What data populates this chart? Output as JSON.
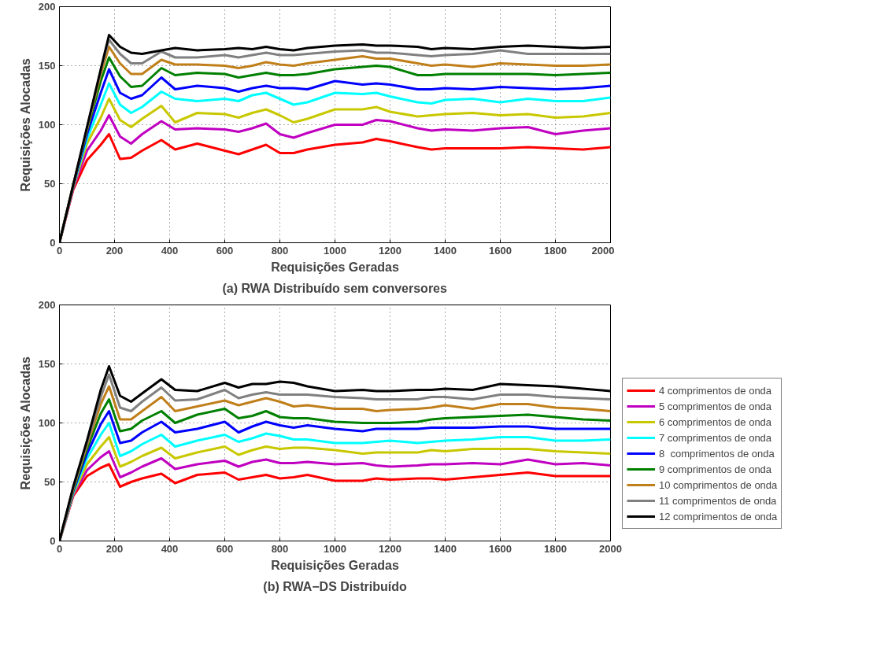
{
  "chart_data": [
    {
      "type": "line",
      "title": "(a) RWA Distribuído sem conversores",
      "xlabel": "Requisições Geradas",
      "ylabel": "Requisições Alocadas",
      "xlim": [
        0,
        2000
      ],
      "ylim": [
        0,
        200
      ],
      "xticks": [
        0,
        200,
        400,
        600,
        800,
        1000,
        1200,
        1400,
        1600,
        1800,
        2000
      ],
      "yticks": [
        0,
        50,
        100,
        150,
        200
      ],
      "grid": true,
      "line_style": "solid",
      "x": [
        0,
        50,
        100,
        150,
        180,
        220,
        260,
        300,
        370,
        420,
        500,
        600,
        650,
        700,
        750,
        800,
        850,
        900,
        1000,
        1100,
        1150,
        1200,
        1300,
        1350,
        1400,
        1500,
        1600,
        1700,
        1800,
        1900,
        2000
      ],
      "series": [
        {
          "color": "#ff0000",
          "values": [
            0,
            45,
            70,
            83,
            92,
            71,
            72,
            78,
            87,
            79,
            84,
            78,
            75,
            79,
            83,
            76,
            76,
            79,
            83,
            85,
            88,
            86,
            81,
            79,
            80,
            80,
            80,
            81,
            80,
            79,
            81
          ]
        },
        {
          "color": "#c000c0",
          "values": [
            0,
            46,
            78,
            95,
            108,
            90,
            84,
            92,
            103,
            96,
            97,
            96,
            94,
            97,
            101,
            92,
            89,
            93,
            100,
            100,
            104,
            103,
            97,
            95,
            96,
            95,
            97,
            98,
            92,
            95,
            97
          ]
        },
        {
          "color": "#c8c800",
          "values": [
            0,
            47,
            84,
            106,
            122,
            104,
            98,
            105,
            116,
            102,
            110,
            109,
            106,
            110,
            113,
            108,
            102,
            105,
            113,
            113,
            115,
            111,
            107,
            108,
            109,
            110,
            108,
            109,
            106,
            107,
            110
          ]
        },
        {
          "color": "#00ffff",
          "values": [
            0,
            48,
            88,
            117,
            135,
            117,
            110,
            115,
            128,
            122,
            120,
            122,
            120,
            125,
            127,
            122,
            117,
            119,
            127,
            126,
            127,
            124,
            119,
            118,
            121,
            122,
            119,
            122,
            120,
            120,
            123
          ]
        },
        {
          "color": "#0000ff",
          "values": [
            0,
            48,
            92,
            127,
            147,
            127,
            122,
            125,
            140,
            130,
            133,
            131,
            128,
            131,
            133,
            131,
            131,
            130,
            137,
            134,
            135,
            134,
            130,
            130,
            131,
            130,
            132,
            131,
            130,
            131,
            133
          ]
        },
        {
          "color": "#008000",
          "values": [
            0,
            49,
            95,
            137,
            157,
            141,
            132,
            133,
            148,
            142,
            144,
            143,
            140,
            142,
            144,
            142,
            142,
            143,
            147,
            149,
            150,
            149,
            142,
            142,
            143,
            143,
            143,
            143,
            142,
            143,
            144
          ]
        },
        {
          "color": "#c07f1a",
          "values": [
            0,
            49,
            96,
            143,
            166,
            152,
            143,
            143,
            155,
            151,
            151,
            150,
            148,
            150,
            153,
            151,
            150,
            152,
            155,
            158,
            156,
            156,
            152,
            150,
            151,
            149,
            152,
            151,
            150,
            150,
            151
          ]
        },
        {
          "color": "#808080",
          "values": [
            0,
            49,
            97,
            146,
            172,
            160,
            152,
            152,
            162,
            157,
            157,
            159,
            157,
            159,
            161,
            159,
            159,
            160,
            162,
            163,
            161,
            161,
            159,
            158,
            159,
            160,
            163,
            160,
            160,
            160,
            160
          ]
        },
        {
          "color": "#000000",
          "values": [
            0,
            49,
            98,
            147,
            176,
            166,
            161,
            160,
            163,
            165,
            163,
            164,
            165,
            164,
            166,
            164,
            163,
            165,
            167,
            168,
            167,
            167,
            166,
            164,
            165,
            164,
            166,
            167,
            166,
            165,
            166
          ]
        }
      ]
    },
    {
      "type": "line",
      "title": "(b) RWA−DS Distribuído",
      "xlabel": "Requisições Geradas",
      "ylabel": "Requisições Alocadas",
      "xlim": [
        0,
        2000
      ],
      "ylim": [
        0,
        200
      ],
      "xticks": [
        0,
        200,
        400,
        600,
        800,
        1000,
        1200,
        1400,
        1600,
        1800,
        2000
      ],
      "yticks": [
        0,
        50,
        100,
        150,
        200
      ],
      "grid": true,
      "line_style": "solid",
      "legend": "right",
      "x": [
        0,
        50,
        100,
        150,
        180,
        220,
        260,
        300,
        370,
        420,
        500,
        600,
        650,
        700,
        750,
        800,
        850,
        900,
        1000,
        1100,
        1150,
        1200,
        1300,
        1350,
        1400,
        1500,
        1600,
        1700,
        1800,
        1900,
        2000
      ],
      "series": [
        {
          "name": "4 comprimentos de onda",
          "color": "#ff0000",
          "values": [
            0,
            38,
            55,
            62,
            65,
            46,
            50,
            53,
            57,
            49,
            56,
            58,
            52,
            54,
            56,
            53,
            54,
            56,
            51,
            51,
            53,
            52,
            53,
            53,
            52,
            54,
            56,
            58,
            55,
            55,
            55
          ]
        },
        {
          "name": "5 comprimentos de onda",
          "color": "#c000c0",
          "values": [
            0,
            39,
            60,
            71,
            76,
            54,
            58,
            63,
            70,
            61,
            65,
            68,
            63,
            67,
            69,
            66,
            66,
            67,
            65,
            66,
            64,
            63,
            64,
            65,
            65,
            66,
            65,
            69,
            65,
            66,
            64
          ]
        },
        {
          "name": "6 comprimentos de onda",
          "color": "#c8c800",
          "values": [
            0,
            40,
            65,
            80,
            88,
            63,
            67,
            72,
            79,
            70,
            75,
            80,
            73,
            77,
            80,
            78,
            79,
            79,
            77,
            74,
            75,
            75,
            75,
            77,
            76,
            78,
            78,
            78,
            76,
            75,
            74
          ]
        },
        {
          "name": "7 comprimentos de onda",
          "color": "#00ffff",
          "values": [
            0,
            41,
            70,
            90,
            100,
            72,
            76,
            82,
            90,
            80,
            85,
            90,
            84,
            87,
            91,
            89,
            86,
            86,
            83,
            83,
            84,
            85,
            83,
            84,
            85,
            86,
            88,
            88,
            85,
            85,
            86
          ]
        },
        {
          "name": "8  comprimentos de onda",
          "color": "#0000ff",
          "values": [
            0,
            42,
            74,
            99,
            110,
            83,
            85,
            92,
            101,
            92,
            95,
            101,
            92,
            97,
            101,
            98,
            96,
            98,
            95,
            93,
            95,
            95,
            95,
            96,
            96,
            96,
            97,
            97,
            95,
            95,
            95
          ]
        },
        {
          "name": "9 comprimentos de onda",
          "color": "#008000",
          "values": [
            0,
            43,
            78,
            108,
            120,
            93,
            95,
            102,
            110,
            100,
            107,
            112,
            104,
            106,
            110,
            105,
            104,
            104,
            101,
            100,
            100,
            100,
            101,
            103,
            104,
            105,
            106,
            107,
            105,
            103,
            102
          ]
        },
        {
          "name": "10 comprimentos de onda",
          "color": "#c07f1a",
          "values": [
            0,
            44,
            81,
            116,
            131,
            103,
            103,
            110,
            122,
            110,
            114,
            119,
            115,
            118,
            121,
            118,
            114,
            115,
            112,
            112,
            110,
            111,
            112,
            113,
            115,
            112,
            116,
            116,
            113,
            112,
            110
          ]
        },
        {
          "name": "11 comprimentos de onda",
          "color": "#808080",
          "values": [
            0,
            45,
            83,
            122,
            141,
            113,
            110,
            118,
            130,
            119,
            120,
            128,
            121,
            124,
            126,
            124,
            124,
            124,
            122,
            121,
            120,
            120,
            120,
            122,
            122,
            120,
            124,
            124,
            122,
            121,
            120
          ]
        },
        {
          "name": "12 comprimentos de onda",
          "color": "#000000",
          "values": [
            0,
            46,
            85,
            128,
            148,
            123,
            118,
            125,
            137,
            128,
            127,
            134,
            130,
            133,
            133,
            135,
            134,
            131,
            127,
            128,
            127,
            127,
            128,
            128,
            129,
            128,
            133,
            132,
            131,
            129,
            127
          ]
        }
      ]
    }
  ]
}
